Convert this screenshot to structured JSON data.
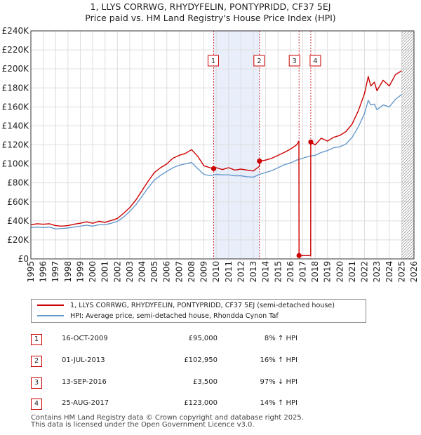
{
  "title": {
    "line1": "1, LLYS CORRWG, RHYDYFELIN, PONTYPRIDD, CF37 5EJ",
    "line2": "Price paid vs. HM Land Registry's House Price Index (HPI)"
  },
  "colors": {
    "price_line": "#cc0000",
    "hpi_line": "#6699cc",
    "shade": "#e8eefa",
    "grid": "#dddddd",
    "marker_border": "#cc0000",
    "future_hatch": "#999999"
  },
  "legend": {
    "price_label": "1, LLYS CORRWG, RHYDYFELIN, PONTYPRIDD, CF37 5EJ (semi-detached house)",
    "hpi_label": "HPI: Average price, semi-detached house, Rhondda Cynon Taf"
  },
  "transactions": [
    {
      "num": "1",
      "date": "16-OCT-2009",
      "price": "£95,000",
      "hpi": "8% ↑ HPI"
    },
    {
      "num": "2",
      "date": "01-JUL-2013",
      "price": "£102,950",
      "hpi": "16% ↑ HPI"
    },
    {
      "num": "3",
      "date": "13-SEP-2016",
      "price": "£3,500",
      "hpi": "97% ↓ HPI"
    },
    {
      "num": "4",
      "date": "25-AUG-2017",
      "price": "£123,000",
      "hpi": "14% ↑ HPI"
    }
  ],
  "footer": {
    "line1": "Contains HM Land Registry data © Crown copyright and database right 2025.",
    "line2": "This data is licensed under the Open Government Licence v3.0."
  },
  "chart_data": {
    "type": "line",
    "title": "1, LLYS CORRWG, RHYDYFELIN, PONTYPRIDD, CF37 5EJ — Price paid vs. HM Land Registry's House Price Index (HPI)",
    "xlabel": "",
    "ylabel": "",
    "xlim": [
      1995,
      2026
    ],
    "ylim": [
      0,
      240000
    ],
    "x_ticks": [
      1995,
      1996,
      1997,
      1998,
      1999,
      2000,
      2001,
      2002,
      2003,
      2004,
      2005,
      2006,
      2007,
      2008,
      2009,
      2010,
      2011,
      2012,
      2013,
      2014,
      2015,
      2016,
      2017,
      2018,
      2019,
      2020,
      2021,
      2022,
      2023,
      2024,
      2025,
      2026
    ],
    "y_ticks": [
      0,
      20000,
      40000,
      60000,
      80000,
      100000,
      120000,
      140000,
      160000,
      180000,
      200000,
      220000,
      240000
    ],
    "y_tick_labels": [
      "£0",
      "£20K",
      "£40K",
      "£60K",
      "£80K",
      "£100K",
      "£120K",
      "£140K",
      "£160K",
      "£180K",
      "£200K",
      "£220K",
      "£240K"
    ],
    "shaded_range": [
      2009.79,
      2013.5
    ],
    "data_end": 2025.0,
    "grid": true,
    "legend_position": "below",
    "series": [
      {
        "name": "1, LLYS CORRWG, RHYDYFELIN, PONTYPRIDD, CF37 5EJ (semi-detached house)",
        "color": "#cc0000",
        "x": [
          1995.0,
          1995.5,
          1996.0,
          1996.5,
          1997.0,
          1997.5,
          1998.0,
          1998.5,
          1999.0,
          1999.5,
          2000.0,
          2000.5,
          2001.0,
          2001.5,
          2002.0,
          2002.5,
          2003.0,
          2003.5,
          2004.0,
          2004.5,
          2005.0,
          2005.5,
          2006.0,
          2006.5,
          2007.0,
          2007.5,
          2008.0,
          2008.5,
          2009.0,
          2009.5,
          2009.79,
          2010.0,
          2010.5,
          2011.0,
          2011.5,
          2012.0,
          2012.5,
          2013.0,
          2013.49,
          2013.5,
          2014.0,
          2014.5,
          2015.0,
          2015.5,
          2016.0,
          2016.5,
          2016.69,
          2016.7,
          2017.0,
          2017.5,
          2017.64,
          2017.65,
          2018.0,
          2018.5,
          2019.0,
          2019.5,
          2020.0,
          2020.5,
          2021.0,
          2021.5,
          2022.0,
          2022.3,
          2022.5,
          2022.8,
          2023.0,
          2023.5,
          2024.0,
          2024.5,
          2025.0
        ],
        "y": [
          36000,
          37000,
          36500,
          37000,
          35000,
          34500,
          35000,
          36500,
          37500,
          39000,
          37500,
          39500,
          38500,
          40500,
          42500,
          48000,
          54000,
          62000,
          72000,
          82000,
          91000,
          96000,
          100000,
          106000,
          109000,
          111000,
          115000,
          108000,
          98000,
          96000,
          95000,
          96000,
          94000,
          96000,
          93500,
          94500,
          93500,
          92500,
          97500,
          102950,
          104000,
          106000,
          109000,
          112000,
          115500,
          120000,
          124000,
          3500,
          3500,
          3500,
          3500,
          123000,
          120000,
          127000,
          124000,
          128000,
          130000,
          134000,
          142000,
          156000,
          174000,
          192000,
          182000,
          186000,
          177000,
          188000,
          182000,
          194000,
          198000
        ]
      },
      {
        "name": "HPI: Average price, semi-detached house, Rhondda Cynon Taf",
        "color": "#6699cc",
        "x": [
          1995.0,
          1995.5,
          1996.0,
          1996.5,
          1997.0,
          1997.5,
          1998.0,
          1998.5,
          1999.0,
          1999.5,
          2000.0,
          2000.5,
          2001.0,
          2001.5,
          2002.0,
          2002.5,
          2003.0,
          2003.5,
          2004.0,
          2004.5,
          2005.0,
          2005.5,
          2006.0,
          2006.5,
          2007.0,
          2007.5,
          2008.0,
          2008.5,
          2009.0,
          2009.5,
          2010.0,
          2010.5,
          2011.0,
          2011.5,
          2012.0,
          2012.5,
          2013.0,
          2013.5,
          2014.0,
          2014.5,
          2015.0,
          2015.5,
          2016.0,
          2016.5,
          2017.0,
          2017.5,
          2018.0,
          2018.5,
          2019.0,
          2019.5,
          2020.0,
          2020.5,
          2021.0,
          2021.5,
          2022.0,
          2022.3,
          2022.5,
          2022.8,
          2023.0,
          2023.5,
          2024.0,
          2024.5,
          2025.0
        ],
        "y": [
          33000,
          33500,
          33000,
          33500,
          31500,
          32000,
          32500,
          33500,
          34500,
          35500,
          34500,
          36000,
          36000,
          37500,
          39500,
          44000,
          50000,
          57000,
          66000,
          75000,
          83000,
          88000,
          92000,
          96000,
          98500,
          100000,
          101500,
          95000,
          89000,
          87500,
          89000,
          88500,
          88500,
          87500,
          87500,
          86500,
          86000,
          89000,
          91000,
          93000,
          96000,
          99000,
          101000,
          104000,
          106000,
          108000,
          109000,
          112000,
          114000,
          117000,
          118000,
          121000,
          128000,
          139000,
          153000,
          167000,
          162000,
          163000,
          157000,
          162000,
          160000,
          168000,
          173000
        ]
      }
    ],
    "transactions": [
      {
        "label": "1",
        "x": 2009.79,
        "price": 95000
      },
      {
        "label": "2",
        "x": 2013.5,
        "price": 102950
      },
      {
        "label": "3",
        "x": 2016.7,
        "price": 3500
      },
      {
        "label": "4",
        "x": 2017.65,
        "price": 123000
      }
    ]
  }
}
